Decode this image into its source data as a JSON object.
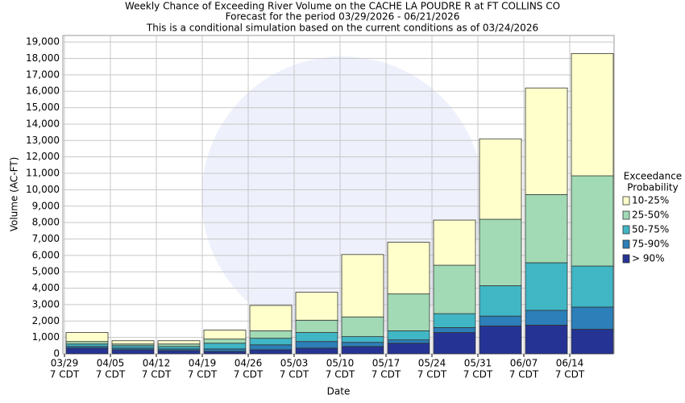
{
  "chart_data": {
    "type": "stacked_bar",
    "title": "Weekly Chance of Exceeding River Volume on the CACHE LA POUDRE R at FT COLLINS CO",
    "subtitle": [
      "Forecast for the period 03/29/2026 - 06/21/2026",
      "This is a conditional simulation based on the current conditions as of 03/24/2026"
    ],
    "x_label": "Date",
    "y_label": "Volume (AC-FT)",
    "legend_title": [
      "Exceedance",
      "Probability"
    ],
    "legend_position": "right",
    "grid": true,
    "categories": [
      [
        "03/29",
        "7 CDT"
      ],
      [
        "04/05",
        "7 CDT"
      ],
      [
        "04/12",
        "7 CDT"
      ],
      [
        "04/19",
        "7 CDT"
      ],
      [
        "04/26",
        "7 CDT"
      ],
      [
        "05/03",
        "7 CDT"
      ],
      [
        "05/10",
        "7 CDT"
      ],
      [
        "05/17",
        "7 CDT"
      ],
      [
        "05/24",
        "7 CDT"
      ],
      [
        "05/31",
        "7 CDT"
      ],
      [
        "06/07",
        "7 CDT"
      ],
      [
        "06/14",
        "7 CDT"
      ]
    ],
    "series": [
      {
        "name": "> 90%",
        "color": "#253494",
        "values": [
          350,
          250,
          200,
          150,
          250,
          350,
          450,
          650,
          1300,
          1700,
          1750,
          1500
        ]
      },
      {
        "name": "75-90%",
        "color": "#2c7fb8",
        "values": [
          100,
          100,
          100,
          150,
          300,
          400,
          250,
          200,
          300,
          600,
          900,
          1350
        ]
      },
      {
        "name": "50-75%",
        "color": "#41b6c4",
        "values": [
          150,
          150,
          150,
          350,
          400,
          550,
          350,
          550,
          850,
          1850,
          2900,
          2500
        ]
      },
      {
        "name": "25-50%",
        "color": "#a1dab4",
        "values": [
          150,
          100,
          150,
          250,
          450,
          750,
          1200,
          2250,
          2950,
          4050,
          4150,
          5500
        ]
      },
      {
        "name": "10-25%",
        "color": "#ffffcc",
        "values": [
          550,
          200,
          200,
          550,
          1550,
          1700,
          3800,
          3150,
          2750,
          4900,
          6500,
          7450
        ]
      }
    ],
    "ylim": [
      0,
      19400
    ],
    "yticks": [
      0,
      {
        "value": 1000,
        "label": "1,000"
      },
      {
        "value": 2000,
        "label": "2,000"
      },
      {
        "value": 3000,
        "label": "3,000"
      },
      {
        "value": 4000,
        "label": "4,000"
      },
      {
        "value": 5000,
        "label": "5,000"
      },
      {
        "value": 6000,
        "label": "6,000"
      },
      {
        "value": 7000,
        "label": "7,000"
      },
      {
        "value": 8000,
        "label": "8,000"
      },
      {
        "value": 9000,
        "label": "9,000"
      },
      {
        "value": 10000,
        "label": "10,000"
      },
      {
        "value": 11000,
        "label": "11,000"
      },
      {
        "value": 12000,
        "label": "12,000"
      },
      {
        "value": 13000,
        "label": "13,000"
      },
      {
        "value": 14000,
        "label": "14,000"
      },
      {
        "value": 15000,
        "label": "15,000"
      },
      {
        "value": 16000,
        "label": "16,000"
      },
      {
        "value": 17000,
        "label": "17,000"
      },
      {
        "value": 18000,
        "label": "18,000"
      },
      {
        "value": 19000,
        "label": "19,000"
      }
    ]
  }
}
